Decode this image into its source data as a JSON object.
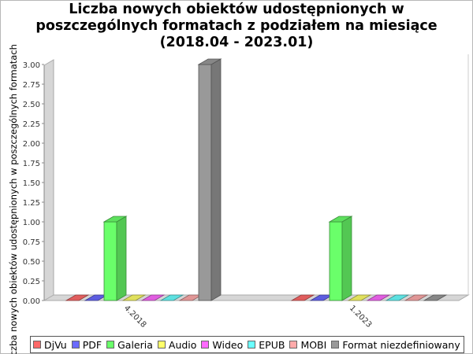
{
  "chart_data": {
    "type": "bar",
    "title": [
      "Liczba nowych obiektów udostępnionych w",
      "poszczególnych formatach z podziałem na miesiące",
      "(2018.04 - 2023.01)"
    ],
    "ylabel": "Liczba nowych obiektów udostępnionych w poszczególnych formatach",
    "xlabel": "",
    "categories": [
      "4.2018",
      "1.2023"
    ],
    "ylim": [
      0,
      3.0
    ],
    "yticks": [
      "0.00",
      "0.25",
      "0.50",
      "0.75",
      "1.00",
      "1.25",
      "1.50",
      "1.75",
      "2.00",
      "2.25",
      "2.50",
      "2.75",
      "3.00"
    ],
    "series": [
      {
        "name": "DjVu",
        "color": "#ff6a6a",
        "values": [
          0,
          0
        ]
      },
      {
        "name": "PDF",
        "color": "#6a6aff",
        "values": [
          0,
          0
        ]
      },
      {
        "name": "Galeria",
        "color": "#6aff6a",
        "values": [
          1,
          1
        ]
      },
      {
        "name": "Audio",
        "color": "#ffff6a",
        "values": [
          0,
          0
        ]
      },
      {
        "name": "Wideo",
        "color": "#ff6aff",
        "values": [
          0,
          0
        ]
      },
      {
        "name": "EPUB",
        "color": "#6affff",
        "values": [
          0,
          0
        ]
      },
      {
        "name": "MOBI",
        "color": "#ffaaaa",
        "values": [
          0,
          0
        ]
      },
      {
        "name": "Format niezdefiniowany",
        "color": "#999999",
        "values": [
          3,
          0
        ]
      }
    ],
    "grid": false,
    "legend": "bottom",
    "style": "3d"
  }
}
